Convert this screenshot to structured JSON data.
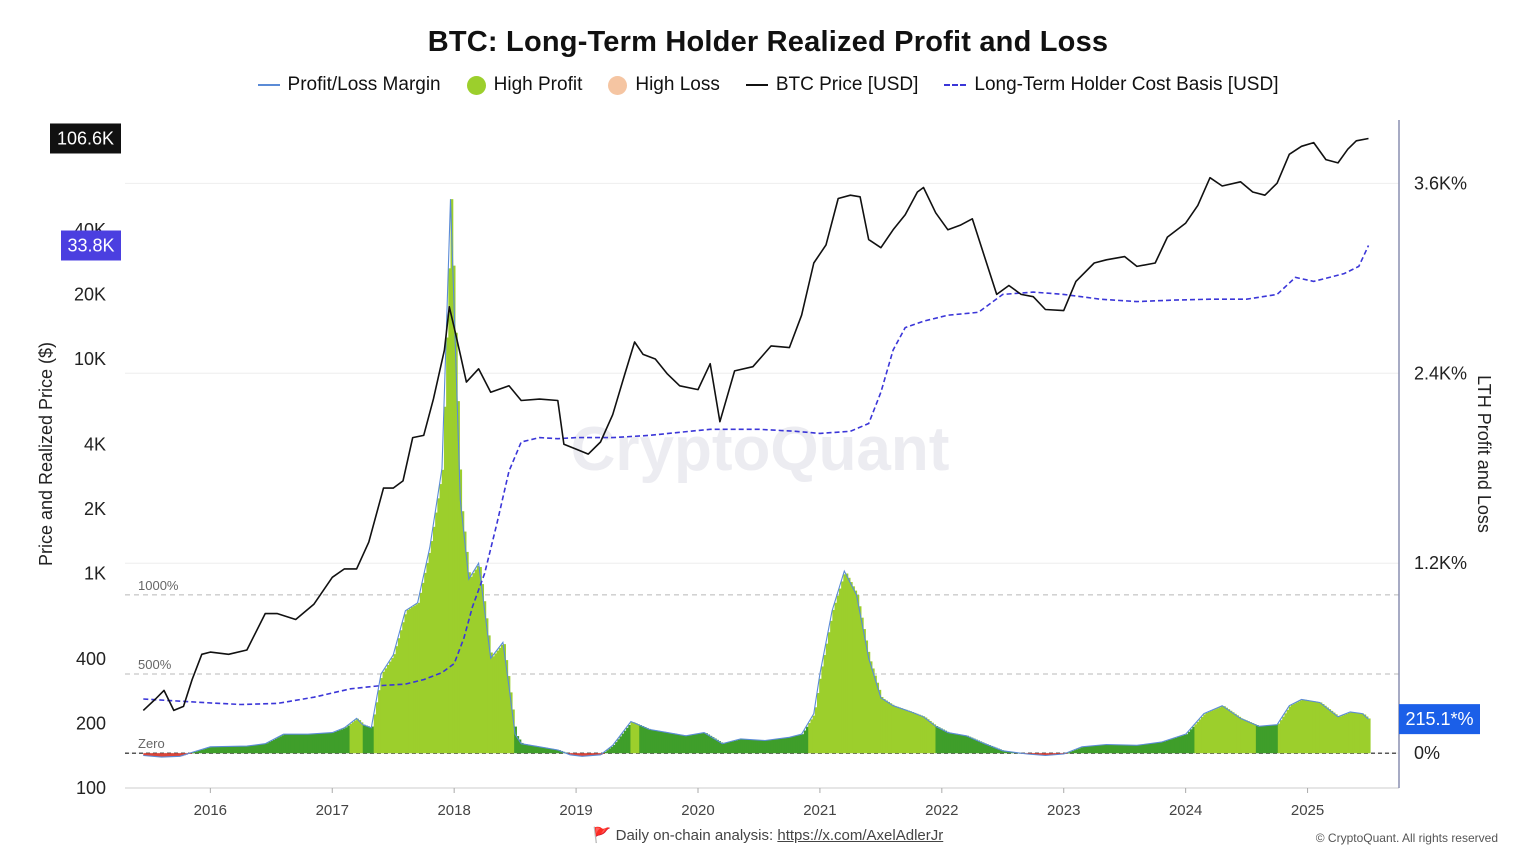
{
  "chart_data": {
    "type": "line",
    "title": "BTC: Long-Term Holder Realized Profit and Loss",
    "legend": [
      {
        "name": "Profit/Loss Margin",
        "color": "#5b8bd6",
        "style": "line"
      },
      {
        "name": "High Profit",
        "color": "#9ccf2c",
        "style": "dot"
      },
      {
        "name": "High Loss",
        "color": "#f5c5a2",
        "style": "dot"
      },
      {
        "name": "BTC Price [USD]",
        "color": "#111111",
        "style": "line"
      },
      {
        "name": "Long-Term Holder Cost Basis [USD]",
        "color": "#3b36d8",
        "style": "dash"
      }
    ],
    "legend_position": "top-center",
    "y_left": {
      "label": "Price and Realized Price ($)",
      "scale": "log",
      "range": [
        100,
        130000
      ],
      "ticks": [
        {
          "v": 100,
          "label": "100"
        },
        {
          "v": 200,
          "label": "200"
        },
        {
          "v": 400,
          "label": "400"
        },
        {
          "v": 1000,
          "label": "1K"
        },
        {
          "v": 2000,
          "label": "2K"
        },
        {
          "v": 4000,
          "label": "4K"
        },
        {
          "v": 10000,
          "label": "10K"
        },
        {
          "v": 20000,
          "label": "20K"
        },
        {
          "v": 40000,
          "label": "40K"
        }
      ]
    },
    "y_right": {
      "label": "LTH Profit and Loss",
      "range": [
        -220,
        4000
      ],
      "ticks": [
        {
          "v": 0,
          "label": "0%"
        },
        {
          "v": 1200,
          "label": "1.2K%"
        },
        {
          "v": 2400,
          "label": "2.4K%"
        },
        {
          "v": 3600,
          "label": "3.6K%"
        }
      ]
    },
    "x": {
      "range": [
        2015.3,
        2025.75
      ],
      "ticks": [
        "2016",
        "2017",
        "2018",
        "2019",
        "2020",
        "2021",
        "2022",
        "2023",
        "2024",
        "2025"
      ]
    },
    "reference_lines": [
      {
        "v": 1000,
        "label": "1000%"
      },
      {
        "v": 500,
        "label": "500%"
      },
      {
        "v": 0,
        "label": "Zero"
      }
    ],
    "price_badge": "106.6K",
    "price_badge_value": 106600,
    "cost_basis_badge": "33.8K",
    "cost_basis_badge_value": 33800,
    "margin_badge": "215.1*%",
    "margin_badge_value": 215.1,
    "grid": true,
    "watermark": "CryptoQuant",
    "series": [
      {
        "name": "BTC Price [USD]",
        "axis": "left",
        "points": [
          [
            2015.45,
            230
          ],
          [
            2015.55,
            260
          ],
          [
            2015.62,
            285
          ],
          [
            2015.7,
            230
          ],
          [
            2015.78,
            240
          ],
          [
            2015.85,
            320
          ],
          [
            2015.93,
            420
          ],
          [
            2016.0,
            430
          ],
          [
            2016.15,
            420
          ],
          [
            2016.3,
            440
          ],
          [
            2016.45,
            650
          ],
          [
            2016.55,
            650
          ],
          [
            2016.7,
            610
          ],
          [
            2016.85,
            720
          ],
          [
            2017.0,
            960
          ],
          [
            2017.1,
            1050
          ],
          [
            2017.2,
            1050
          ],
          [
            2017.3,
            1400
          ],
          [
            2017.42,
            2500
          ],
          [
            2017.5,
            2500
          ],
          [
            2017.58,
            2700
          ],
          [
            2017.66,
            4300
          ],
          [
            2017.75,
            4400
          ],
          [
            2017.83,
            6500
          ],
          [
            2017.92,
            11000
          ],
          [
            2017.96,
            17500
          ],
          [
            2018.0,
            14000
          ],
          [
            2018.05,
            10500
          ],
          [
            2018.1,
            7800
          ],
          [
            2018.2,
            9000
          ],
          [
            2018.3,
            7000
          ],
          [
            2018.45,
            7500
          ],
          [
            2018.55,
            6400
          ],
          [
            2018.7,
            6500
          ],
          [
            2018.85,
            6400
          ],
          [
            2018.9,
            4000
          ],
          [
            2019.0,
            3800
          ],
          [
            2019.1,
            3600
          ],
          [
            2019.2,
            4100
          ],
          [
            2019.3,
            5500
          ],
          [
            2019.4,
            8500
          ],
          [
            2019.48,
            12000
          ],
          [
            2019.55,
            10500
          ],
          [
            2019.65,
            10000
          ],
          [
            2019.75,
            8500
          ],
          [
            2019.85,
            7500
          ],
          [
            2020.0,
            7200
          ],
          [
            2020.1,
            9500
          ],
          [
            2020.18,
            5100
          ],
          [
            2020.3,
            8800
          ],
          [
            2020.45,
            9200
          ],
          [
            2020.6,
            11500
          ],
          [
            2020.75,
            11300
          ],
          [
            2020.85,
            16000
          ],
          [
            2020.95,
            28000
          ],
          [
            2021.05,
            34000
          ],
          [
            2021.15,
            56000
          ],
          [
            2021.25,
            58000
          ],
          [
            2021.33,
            57000
          ],
          [
            2021.4,
            36000
          ],
          [
            2021.5,
            33000
          ],
          [
            2021.6,
            40000
          ],
          [
            2021.7,
            47000
          ],
          [
            2021.8,
            60000
          ],
          [
            2021.85,
            63000
          ],
          [
            2021.95,
            48000
          ],
          [
            2022.05,
            40000
          ],
          [
            2022.15,
            42000
          ],
          [
            2022.25,
            45000
          ],
          [
            2022.35,
            30000
          ],
          [
            2022.45,
            20000
          ],
          [
            2022.55,
            22000
          ],
          [
            2022.65,
            20000
          ],
          [
            2022.75,
            19500
          ],
          [
            2022.85,
            17000
          ],
          [
            2023.0,
            16800
          ],
          [
            2023.1,
            23000
          ],
          [
            2023.25,
            28000
          ],
          [
            2023.35,
            29000
          ],
          [
            2023.5,
            30000
          ],
          [
            2023.6,
            27000
          ],
          [
            2023.75,
            28000
          ],
          [
            2023.85,
            37000
          ],
          [
            2024.0,
            43000
          ],
          [
            2024.1,
            52000
          ],
          [
            2024.2,
            70000
          ],
          [
            2024.3,
            64000
          ],
          [
            2024.45,
            67000
          ],
          [
            2024.55,
            60000
          ],
          [
            2024.65,
            58000
          ],
          [
            2024.75,
            66000
          ],
          [
            2024.85,
            90000
          ],
          [
            2024.95,
            98000
          ],
          [
            2025.05,
            102000
          ],
          [
            2025.15,
            85000
          ],
          [
            2025.25,
            82000
          ],
          [
            2025.33,
            95000
          ],
          [
            2025.4,
            104000
          ],
          [
            2025.5,
            106600
          ]
        ]
      },
      {
        "name": "Long-Term Holder Cost Basis [USD]",
        "axis": "left",
        "points": [
          [
            2015.45,
            260
          ],
          [
            2015.7,
            255
          ],
          [
            2015.95,
            250
          ],
          [
            2016.25,
            245
          ],
          [
            2016.55,
            248
          ],
          [
            2016.85,
            265
          ],
          [
            2017.15,
            290
          ],
          [
            2017.4,
            300
          ],
          [
            2017.6,
            305
          ],
          [
            2017.75,
            320
          ],
          [
            2017.9,
            345
          ],
          [
            2018.0,
            380
          ],
          [
            2018.08,
            500
          ],
          [
            2018.15,
            700
          ],
          [
            2018.25,
            1000
          ],
          [
            2018.35,
            1700
          ],
          [
            2018.45,
            3000
          ],
          [
            2018.55,
            4100
          ],
          [
            2018.7,
            4300
          ],
          [
            2018.85,
            4250
          ],
          [
            2019.0,
            4300
          ],
          [
            2019.3,
            4300
          ],
          [
            2019.6,
            4400
          ],
          [
            2019.85,
            4550
          ],
          [
            2020.1,
            4700
          ],
          [
            2020.5,
            4700
          ],
          [
            2020.8,
            4600
          ],
          [
            2021.0,
            4500
          ],
          [
            2021.25,
            4600
          ],
          [
            2021.4,
            5000
          ],
          [
            2021.5,
            7000
          ],
          [
            2021.6,
            11000
          ],
          [
            2021.7,
            14000
          ],
          [
            2021.85,
            15000
          ],
          [
            2022.05,
            16000
          ],
          [
            2022.3,
            16500
          ],
          [
            2022.5,
            20000
          ],
          [
            2022.75,
            20500
          ],
          [
            2023.0,
            20000
          ],
          [
            2023.3,
            19000
          ],
          [
            2023.6,
            18500
          ],
          [
            2023.9,
            18800
          ],
          [
            2024.2,
            19000
          ],
          [
            2024.5,
            19000
          ],
          [
            2024.75,
            20000
          ],
          [
            2024.9,
            24000
          ],
          [
            2025.05,
            23000
          ],
          [
            2025.3,
            25000
          ],
          [
            2025.42,
            27000
          ],
          [
            2025.5,
            33800
          ]
        ]
      },
      {
        "name": "Profit/Loss Margin",
        "axis": "right",
        "points": [
          [
            2015.45,
            -15
          ],
          [
            2015.6,
            -25
          ],
          [
            2015.75,
            -20
          ],
          [
            2015.85,
            5
          ],
          [
            2016.0,
            40
          ],
          [
            2016.3,
            45
          ],
          [
            2016.45,
            60
          ],
          [
            2016.6,
            120
          ],
          [
            2016.8,
            120
          ],
          [
            2017.0,
            130
          ],
          [
            2017.1,
            160
          ],
          [
            2017.2,
            220
          ],
          [
            2017.25,
            180
          ],
          [
            2017.32,
            160
          ],
          [
            2017.4,
            500
          ],
          [
            2017.5,
            620
          ],
          [
            2017.6,
            900
          ],
          [
            2017.7,
            950
          ],
          [
            2017.8,
            1300
          ],
          [
            2017.9,
            1800
          ],
          [
            2017.97,
            3500
          ],
          [
            2018.0,
            2800
          ],
          [
            2018.05,
            1600
          ],
          [
            2018.12,
            1100
          ],
          [
            2018.2,
            1200
          ],
          [
            2018.3,
            600
          ],
          [
            2018.4,
            700
          ],
          [
            2018.45,
            420
          ],
          [
            2018.5,
            120
          ],
          [
            2018.55,
            60
          ],
          [
            2018.7,
            40
          ],
          [
            2018.85,
            20
          ],
          [
            2018.95,
            -10
          ],
          [
            2019.05,
            -20
          ],
          [
            2019.2,
            -10
          ],
          [
            2019.3,
            50
          ],
          [
            2019.45,
            200
          ],
          [
            2019.6,
            150
          ],
          [
            2019.75,
            130
          ],
          [
            2019.9,
            110
          ],
          [
            2020.05,
            130
          ],
          [
            2020.2,
            60
          ],
          [
            2020.35,
            90
          ],
          [
            2020.55,
            80
          ],
          [
            2020.75,
            100
          ],
          [
            2020.85,
            120
          ],
          [
            2020.95,
            250
          ],
          [
            2021.0,
            500
          ],
          [
            2021.1,
            900
          ],
          [
            2021.2,
            1150
          ],
          [
            2021.3,
            1000
          ],
          [
            2021.4,
            600
          ],
          [
            2021.5,
            350
          ],
          [
            2021.6,
            300
          ],
          [
            2021.75,
            260
          ],
          [
            2021.85,
            230
          ],
          [
            2021.95,
            170
          ],
          [
            2022.05,
            130
          ],
          [
            2022.2,
            110
          ],
          [
            2022.35,
            60
          ],
          [
            2022.5,
            15
          ],
          [
            2022.7,
            -5
          ],
          [
            2022.85,
            -15
          ],
          [
            2023.0,
            -5
          ],
          [
            2023.15,
            40
          ],
          [
            2023.35,
            55
          ],
          [
            2023.6,
            50
          ],
          [
            2023.8,
            70
          ],
          [
            2024.0,
            120
          ],
          [
            2024.15,
            250
          ],
          [
            2024.3,
            300
          ],
          [
            2024.45,
            220
          ],
          [
            2024.6,
            170
          ],
          [
            2024.75,
            180
          ],
          [
            2024.85,
            300
          ],
          [
            2024.95,
            340
          ],
          [
            2025.1,
            320
          ],
          [
            2025.25,
            230
          ],
          [
            2025.35,
            260
          ],
          [
            2025.45,
            250
          ],
          [
            2025.5,
            215
          ]
        ]
      }
    ]
  },
  "footer": {
    "flag": "🚩",
    "text": "Daily on-chain analysis: ",
    "link": "https://x.com/AxelAdlerJr",
    "copyright": "© CryptoQuant. All rights reserved"
  }
}
